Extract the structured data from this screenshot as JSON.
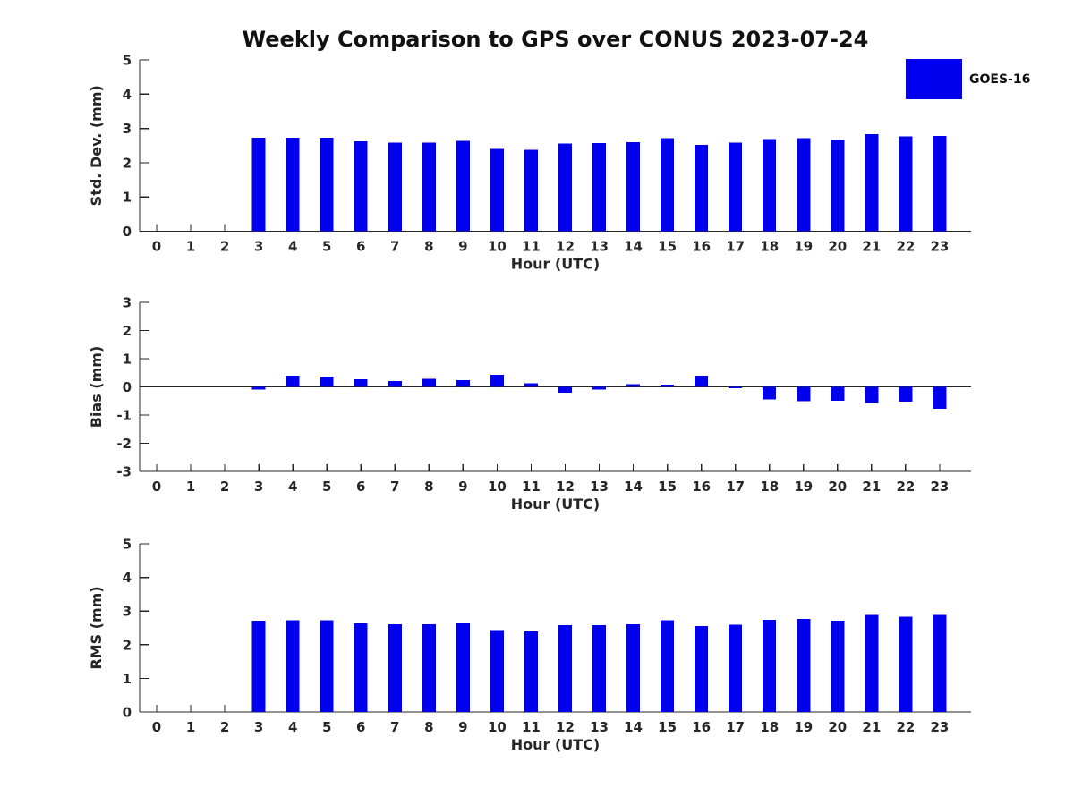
{
  "title": "Weekly Comparison to GPS over CONUS 2023-07-24",
  "legend": {
    "label": "GOES-16",
    "color": "#0000ee"
  },
  "colors": {
    "axis": "#262626",
    "text": "#262626"
  },
  "chart_data": [
    {
      "type": "bar",
      "series_name": "GOES-16",
      "ylabel": "Std. Dev. (mm)",
      "xlabel": "Hour (UTC)",
      "categories": [
        0,
        1,
        2,
        3,
        4,
        5,
        6,
        7,
        8,
        9,
        10,
        11,
        12,
        13,
        14,
        15,
        16,
        17,
        18,
        19,
        20,
        21,
        22,
        23
      ],
      "values": [
        null,
        null,
        null,
        2.73,
        2.73,
        2.73,
        2.62,
        2.58,
        2.59,
        2.64,
        2.4,
        2.37,
        2.56,
        2.57,
        2.6,
        2.72,
        2.52,
        2.58,
        2.69,
        2.72,
        2.66,
        2.83,
        2.77,
        2.78
      ],
      "ylim": [
        0,
        5
      ],
      "yticks": [
        0,
        1,
        2,
        3,
        4,
        5
      ],
      "grid": false,
      "legend_position": "top-right"
    },
    {
      "type": "bar",
      "series_name": "GOES-16",
      "ylabel": "Bias (mm)",
      "xlabel": "Hour (UTC)",
      "categories": [
        0,
        1,
        2,
        3,
        4,
        5,
        6,
        7,
        8,
        9,
        10,
        11,
        12,
        13,
        14,
        15,
        16,
        17,
        18,
        19,
        20,
        21,
        22,
        23
      ],
      "values": [
        null,
        null,
        null,
        -0.09,
        0.4,
        0.37,
        0.27,
        0.21,
        0.28,
        0.24,
        0.43,
        0.12,
        -0.21,
        -0.1,
        0.1,
        0.08,
        0.4,
        -0.05,
        -0.44,
        -0.5,
        -0.49,
        -0.59,
        -0.53,
        -0.77
      ],
      "ylim": [
        -3,
        3
      ],
      "yticks": [
        -3,
        -2,
        -1,
        0,
        1,
        2,
        3
      ],
      "grid": false,
      "zero_line": true
    },
    {
      "type": "bar",
      "series_name": "GOES-16",
      "ylabel": "RMS (mm)",
      "xlabel": "Hour (UTC)",
      "categories": [
        0,
        1,
        2,
        3,
        4,
        5,
        6,
        7,
        8,
        9,
        10,
        11,
        12,
        13,
        14,
        15,
        16,
        17,
        18,
        19,
        20,
        21,
        22,
        23
      ],
      "values": [
        null,
        null,
        null,
        2.71,
        2.73,
        2.73,
        2.63,
        2.6,
        2.61,
        2.66,
        2.43,
        2.4,
        2.58,
        2.58,
        2.61,
        2.72,
        2.55,
        2.59,
        2.74,
        2.76,
        2.71,
        2.89,
        2.83,
        2.88
      ],
      "ylim": [
        0,
        5
      ],
      "yticks": [
        0,
        1,
        2,
        3,
        4,
        5
      ],
      "grid": false
    }
  ]
}
